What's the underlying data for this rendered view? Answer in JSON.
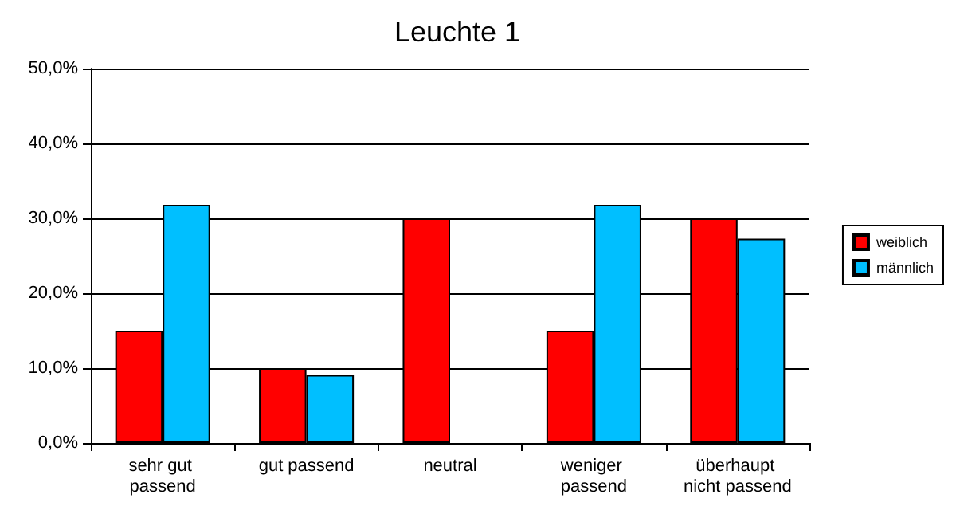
{
  "chart_data": {
    "type": "bar",
    "title": "Leuchte 1",
    "categories": [
      "sehr gut passend",
      "gut passend",
      "neutral",
      "weniger passend",
      "überhaupt nicht passend"
    ],
    "series": [
      {
        "name": "weiblich",
        "color": "#ff0000",
        "values": [
          15,
          10,
          30,
          15,
          30
        ]
      },
      {
        "name": "männlich",
        "color": "#00bfff",
        "values": [
          31.8,
          9.1,
          null,
          31.8,
          27.3
        ]
      }
    ],
    "ylim": [
      0,
      50
    ],
    "yticks": [
      {
        "value": 0,
        "label": "0,0%"
      },
      {
        "value": 10,
        "label": "10,0%"
      },
      {
        "value": 20,
        "label": "20,0%"
      },
      {
        "value": 30,
        "label": "30,0%"
      },
      {
        "value": 40,
        "label": "40,0%"
      },
      {
        "value": 50,
        "label": "50,0%"
      }
    ],
    "grid": "y",
    "legend": "right"
  }
}
